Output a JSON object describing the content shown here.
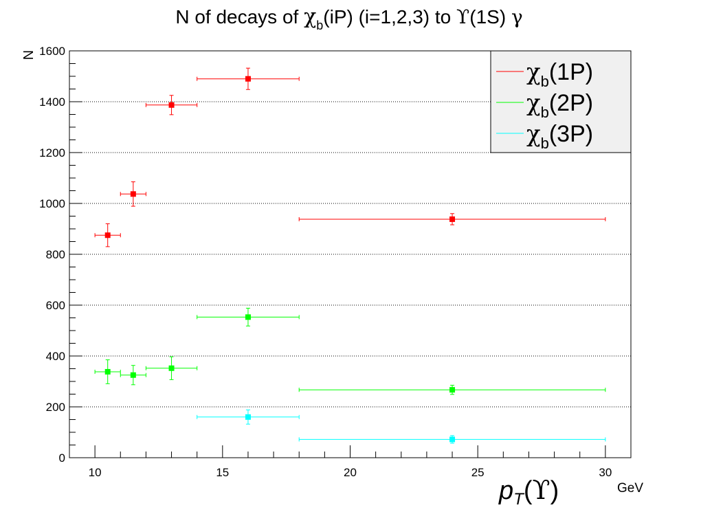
{
  "chart_data": {
    "type": "scatter",
    "title": {
      "prefix": "N of decays of ",
      "chi": "χ",
      "chi_sub": "b",
      "mid": "(iP) (i=1,2,3) to ",
      "upsilon": "ϒ",
      "suffix": "(1S) ",
      "gamma": "γ"
    },
    "xlabel": {
      "p": "p",
      "sub": "T",
      "open": "(",
      "upsilon": "ϒ",
      "close": ")",
      "unit": "GeV"
    },
    "ylabel": "N",
    "xlim": [
      9,
      31
    ],
    "ylim": [
      0,
      1600
    ],
    "x_ticks": [
      10,
      15,
      20,
      25,
      30
    ],
    "y_ticks": [
      0,
      200,
      400,
      600,
      800,
      1000,
      1200,
      1400,
      1600
    ],
    "grid": {
      "x": false,
      "y": true
    },
    "legend_position": "top-right",
    "series": [
      {
        "name": {
          "chi": "χ",
          "sub": "b",
          "label": "(1P)"
        },
        "color": "#ff0000",
        "points": [
          {
            "x": 10.5,
            "xlo": 10,
            "xhi": 11,
            "y": 875,
            "yerr": 45
          },
          {
            "x": 11.5,
            "xlo": 11,
            "xhi": 12,
            "y": 1037,
            "yerr": 48
          },
          {
            "x": 13,
            "xlo": 12,
            "xhi": 14,
            "y": 1387,
            "yerr": 38
          },
          {
            "x": 16,
            "xlo": 14,
            "xhi": 18,
            "y": 1490,
            "yerr": 42
          },
          {
            "x": 24,
            "xlo": 18,
            "xhi": 30,
            "y": 938,
            "yerr": 22
          }
        ]
      },
      {
        "name": {
          "chi": "χ",
          "sub": "b",
          "label": "(2P)"
        },
        "color": "#00ff00",
        "points": [
          {
            "x": 10.5,
            "xlo": 10,
            "xhi": 11,
            "y": 338,
            "yerr": 47
          },
          {
            "x": 11.5,
            "xlo": 11,
            "xhi": 12,
            "y": 325,
            "yerr": 38
          },
          {
            "x": 13,
            "xlo": 12,
            "xhi": 14,
            "y": 352,
            "yerr": 45
          },
          {
            "x": 16,
            "xlo": 14,
            "xhi": 18,
            "y": 553,
            "yerr": 35
          },
          {
            "x": 24,
            "xlo": 18,
            "xhi": 30,
            "y": 267,
            "yerr": 18
          }
        ]
      },
      {
        "name": {
          "chi": "χ",
          "sub": "b",
          "label": "(3P)"
        },
        "color": "#00ffff",
        "points": [
          {
            "x": 16,
            "xlo": 14,
            "xhi": 18,
            "y": 160,
            "yerr": 28
          },
          {
            "x": 24,
            "xlo": 18,
            "xhi": 30,
            "y": 72,
            "yerr": 15
          }
        ]
      }
    ]
  }
}
